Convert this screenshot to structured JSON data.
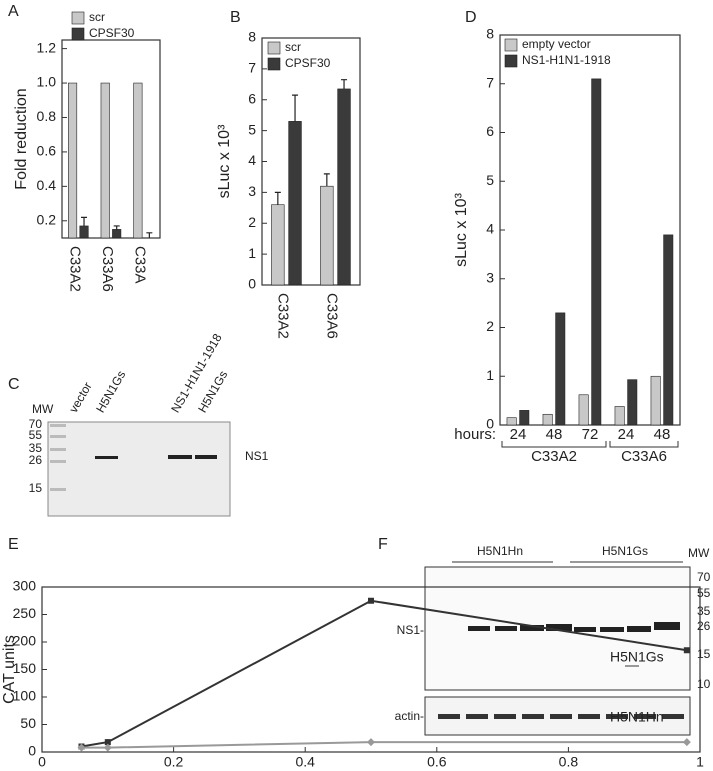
{
  "chart_data": [
    {
      "type": "bar",
      "panel": "A",
      "y_label": "Fold reduction",
      "categories": [
        "C33A2",
        "C33A6",
        "C33A"
      ],
      "series": [
        {
          "name": "scr",
          "color": "#c8c8c8",
          "values": [
            1.0,
            1.0,
            1.0
          ]
        },
        {
          "name": "CPSF30",
          "color": "#3a3a3a",
          "values": [
            0.17,
            0.15,
            0.1
          ],
          "errors": [
            0.05,
            0.02,
            0.03
          ]
        }
      ],
      "ylim": [
        0.1,
        1.25
      ],
      "yticks": [
        0.2,
        0.4,
        0.6,
        0.8,
        {
          "value": 1,
          "label": "1.0"
        },
        1.2
      ],
      "grid": false
    },
    {
      "type": "bar",
      "panel": "B",
      "y_label": "sLuc x 10³",
      "categories": [
        "C33A2",
        "C33A6"
      ],
      "series": [
        {
          "name": "scr",
          "color": "#c8c8c8",
          "values": [
            2.6,
            3.2
          ],
          "errors": [
            0.4,
            0.4
          ]
        },
        {
          "name": "CPSF30",
          "color": "#3a3a3a",
          "values": [
            5.3,
            6.35
          ],
          "errors": [
            0.85,
            0.3
          ]
        }
      ],
      "ylim": [
        0,
        8
      ],
      "yticks": [
        0,
        1,
        2,
        3,
        4,
        5,
        6,
        7,
        8
      ],
      "grid": false
    },
    {
      "type": "bar",
      "panel": "D",
      "y_label": "sLuc x 10³",
      "x_label": "hours:",
      "categories": [
        "24",
        "48",
        "72",
        "24",
        "48"
      ],
      "groups": [
        "C33A2",
        "C33A6"
      ],
      "series": [
        {
          "name": "empty vector",
          "color": "#c8c8c8",
          "values": [
            0.15,
            0.22,
            0.62,
            0.38,
            1.0
          ]
        },
        {
          "name": "NS1-H1N1-1918",
          "color": "#3a3a3a",
          "values": [
            0.3,
            2.3,
            7.1,
            0.93,
            3.9
          ]
        }
      ],
      "ylim": [
        0,
        8
      ],
      "yticks": [
        0,
        1,
        2,
        3,
        4,
        5,
        6,
        7,
        8
      ],
      "grid": false
    },
    {
      "type": "line",
      "panel": "E",
      "y_label": "CAT units",
      "series": [
        {
          "name": "H5N1Gs",
          "color": "#333333",
          "x": [
            0.06,
            0.1,
            0.5,
            0.98
          ],
          "values": [
            10,
            18,
            275,
            185
          ]
        },
        {
          "name": "H5N1Hn",
          "color": "#999999",
          "x": [
            0.06,
            0.1,
            0.5,
            0.98
          ],
          "values": [
            8,
            8,
            18,
            18
          ]
        }
      ],
      "xlim": [
        0,
        1
      ],
      "xticks": [
        0,
        0.2,
        0.4,
        0.6,
        0.8,
        1
      ],
      "ylim": [
        0,
        300
      ],
      "yticks": [
        0,
        50,
        100,
        150,
        200,
        250,
        300
      ],
      "grid": false
    }
  ],
  "blots": [
    {
      "panel": "C",
      "mw_label": "MW",
      "lanes": [
        "vector",
        "H5N1Gs",
        "NS1-H1N1-1918",
        "H5N1Gs"
      ],
      "markers": [
        "70",
        "55",
        "35",
        "26",
        "15"
      ],
      "band_label": "NS1"
    },
    {
      "panel": "F",
      "groups": [
        "H5N1Hn",
        "H5N1Gs"
      ],
      "mw_label": "MW",
      "markers": [
        "70",
        "55",
        "35",
        "26",
        "15",
        "10"
      ],
      "band_label": "NS1-",
      "loading_label": "actin-"
    }
  ]
}
